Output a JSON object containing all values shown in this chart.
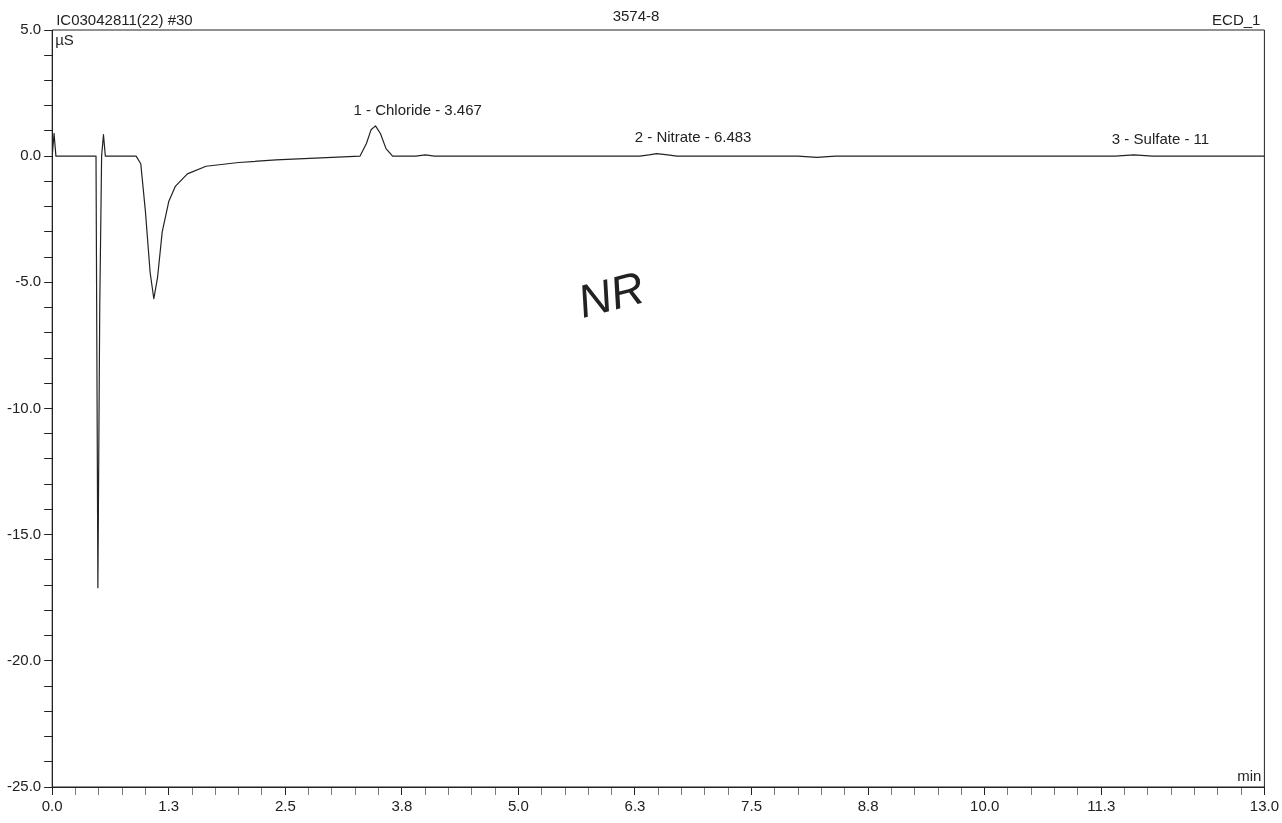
{
  "chart_data": {
    "type": "line",
    "title": "3574-8",
    "xlabel": "min",
    "ylabel": "µS",
    "annotations": [
      "IC03042811(22) #30",
      "ECD_1",
      "NR",
      {
        "text": "1 - Chloride - 3.467",
        "x": 3.467,
        "y": 1.2
      },
      {
        "text": "2 - Nitrate - 6.483",
        "x": 6.483,
        "y": 0.1
      },
      {
        "text": "3 - Sulfate - 11",
        "x": 11.6,
        "y": 0.05
      }
    ],
    "series": [
      {
        "color": "#222222",
        "x": [
          0,
          0.02,
          0.04,
          0.06,
          0.3,
          0.47,
          0.49,
          0.51,
          0.53,
          0.55,
          0.57,
          0.6,
          0.9,
          0.95,
          1.0,
          1.05,
          1.09,
          1.13,
          1.18,
          1.25,
          1.32,
          1.45,
          1.65,
          2.0,
          2.4,
          3.0,
          3.3,
          3.37,
          3.42,
          3.467,
          3.52,
          3.58,
          3.65,
          3.9,
          4.0,
          4.1,
          6.3,
          6.4,
          6.483,
          6.6,
          6.7,
          8.0,
          8.2,
          8.4,
          11.4,
          11.6,
          11.8,
          13.0
        ],
        "values": [
          0,
          0.9,
          0,
          0,
          0,
          0,
          -17.1,
          -6,
          0,
          0.85,
          0,
          0,
          0,
          -0.3,
          -2.2,
          -4.6,
          -5.65,
          -4.8,
          -3.0,
          -1.8,
          -1.2,
          -0.7,
          -0.4,
          -0.25,
          -0.15,
          -0.05,
          0,
          0.5,
          1.05,
          1.2,
          0.9,
          0.3,
          0,
          0,
          0.05,
          0,
          0,
          0.05,
          0.1,
          0.05,
          0,
          0,
          -0.05,
          0,
          0,
          0.05,
          0,
          0
        ]
      }
    ],
    "xlim": [
      0,
      13
    ],
    "xticks": [
      {
        "value": 0,
        "label": "0.0"
      },
      {
        "value": 0.25,
        "label": null
      },
      {
        "value": 0.5,
        "label": null
      },
      {
        "value": 0.75,
        "label": null
      },
      {
        "value": 1,
        "label": null
      },
      {
        "value": 1.25,
        "label": "1.3"
      },
      {
        "value": 1.5,
        "label": null
      },
      {
        "value": 1.75,
        "label": null
      },
      {
        "value": 2,
        "label": null
      },
      {
        "value": 2.25,
        "label": null
      },
      {
        "value": 2.5,
        "label": "2.5"
      },
      {
        "value": 2.75,
        "label": null
      },
      {
        "value": 3,
        "label": null
      },
      {
        "value": 3.25,
        "label": null
      },
      {
        "value": 3.5,
        "label": null
      },
      {
        "value": 3.75,
        "label": "3.8"
      },
      {
        "value": 4,
        "label": null
      },
      {
        "value": 4.25,
        "label": null
      },
      {
        "value": 4.5,
        "label": null
      },
      {
        "value": 4.75,
        "label": null
      },
      {
        "value": 5,
        "label": "5.0"
      },
      {
        "value": 5.25,
        "label": null
      },
      {
        "value": 5.5,
        "label": null
      },
      {
        "value": 5.75,
        "label": null
      },
      {
        "value": 6,
        "label": null
      },
      {
        "value": 6.25,
        "label": "6.3"
      },
      {
        "value": 6.5,
        "label": null
      },
      {
        "value": 6.75,
        "label": null
      },
      {
        "value": 7,
        "label": null
      },
      {
        "value": 7.25,
        "label": null
      },
      {
        "value": 7.5,
        "label": "7.5"
      },
      {
        "value": 7.75,
        "label": null
      },
      {
        "value": 8,
        "label": null
      },
      {
        "value": 8.25,
        "label": null
      },
      {
        "value": 8.5,
        "label": null
      },
      {
        "value": 8.75,
        "label": "8.8"
      },
      {
        "value": 9,
        "label": null
      },
      {
        "value": 9.25,
        "label": null
      },
      {
        "value": 9.5,
        "label": null
      },
      {
        "value": 9.75,
        "label": null
      },
      {
        "value": 10,
        "label": "10.0"
      },
      {
        "value": 10.25,
        "label": null
      },
      {
        "value": 10.5,
        "label": null
      },
      {
        "value": 10.75,
        "label": null
      },
      {
        "value": 11,
        "label": null
      },
      {
        "value": 11.25,
        "label": "11.3"
      },
      {
        "value": 11.5,
        "label": null
      },
      {
        "value": 11.75,
        "label": null
      },
      {
        "value": 12,
        "label": null
      },
      {
        "value": 12.25,
        "label": null
      },
      {
        "value": 12.5,
        "label": null
      },
      {
        "value": 12.75,
        "label": null
      },
      {
        "value": 13,
        "label": "13.0"
      }
    ],
    "ylim": [
      -25,
      5
    ],
    "yticks": [
      {
        "value": 5,
        "label": "5.0"
      },
      {
        "value": 4,
        "label": null
      },
      {
        "value": 3,
        "label": null
      },
      {
        "value": 2,
        "label": null
      },
      {
        "value": 1,
        "label": null
      },
      {
        "value": 0,
        "label": "0.0"
      },
      {
        "value": -1,
        "label": null
      },
      {
        "value": -2,
        "label": null
      },
      {
        "value": -3,
        "label": null
      },
      {
        "value": -4,
        "label": null
      },
      {
        "value": -5,
        "label": "-5.0"
      },
      {
        "value": -6,
        "label": null
      },
      {
        "value": -7,
        "label": null
      },
      {
        "value": -8,
        "label": null
      },
      {
        "value": -9,
        "label": null
      },
      {
        "value": -10,
        "label": "-10.0"
      },
      {
        "value": -11,
        "label": null
      },
      {
        "value": -12,
        "label": null
      },
      {
        "value": -13,
        "label": null
      },
      {
        "value": -14,
        "label": null
      },
      {
        "value": -15,
        "label": "-15.0"
      },
      {
        "value": -16,
        "label": null
      },
      {
        "value": -17,
        "label": null
      },
      {
        "value": -18,
        "label": null
      },
      {
        "value": -19,
        "label": null
      },
      {
        "value": -20,
        "label": "-20.0"
      },
      {
        "value": -21,
        "label": null
      },
      {
        "value": -22,
        "label": null
      },
      {
        "value": -23,
        "label": null
      },
      {
        "value": -24,
        "label": null
      },
      {
        "value": -25,
        "label": "-25.0"
      }
    ],
    "grid": false,
    "legend": false,
    "marker": "none",
    "line_style": "solid"
  }
}
